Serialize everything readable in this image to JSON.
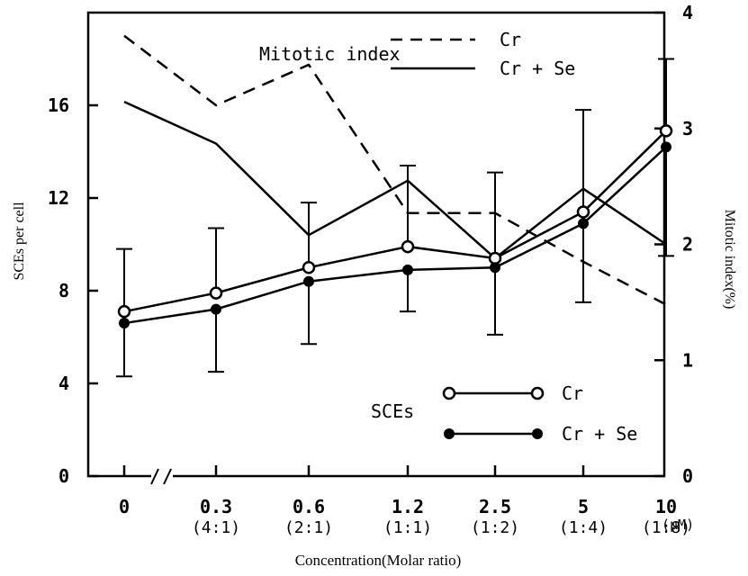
{
  "chart_data": {
    "type": "line",
    "xlabel": "Concentration(Molar ratio)",
    "ylabel_left": "SCEs per cell",
    "ylabel_right": "Mitotic index(%)",
    "x_unit": "(μM)",
    "categories": [
      "0",
      "0.3",
      "0.6",
      "1.2",
      "2.5",
      "5",
      "10"
    ],
    "ratios": [
      "",
      "(4:1)",
      "(2:1)",
      "(1:1)",
      "(1:2)",
      "(1:4)",
      "(1:8)"
    ],
    "y_left_ticks": [
      "0",
      "4",
      "8",
      "12",
      "16"
    ],
    "y_left_lim": [
      0,
      20
    ],
    "y_right_ticks": [
      "0",
      "1",
      "2",
      "3",
      "4"
    ],
    "y_right_lim": [
      0,
      4
    ],
    "sce_series": [
      {
        "name": "Cr",
        "marker": "open",
        "values": [
          7.1,
          7.9,
          9.0,
          9.9,
          9.4,
          11.4,
          14.9
        ],
        "err_high": [
          9.8,
          10.7,
          11.8,
          13.4,
          13.1,
          15.8,
          18.0
        ],
        "err_low": [
          null,
          null,
          null,
          null,
          null,
          null,
          null
        ]
      },
      {
        "name": "Cr + Se",
        "marker": "filled",
        "values": [
          6.6,
          7.2,
          8.4,
          8.9,
          9.0,
          10.9,
          14.2
        ],
        "err_high": [
          null,
          null,
          null,
          null,
          null,
          null,
          null
        ],
        "err_low": [
          4.3,
          4.5,
          5.7,
          7.1,
          6.1,
          7.5,
          9.5
        ]
      }
    ],
    "mitotic_series": [
      {
        "name": "Cr",
        "style": "dashed",
        "values": [
          3.8,
          3.2,
          3.55,
          2.27,
          2.27,
          1.85,
          1.48
        ]
      },
      {
        "name": "Cr + Se",
        "style": "solid",
        "values": [
          3.23,
          2.87,
          2.08,
          2.55,
          1.88,
          2.48,
          2.0
        ]
      }
    ],
    "annotation_mitotic": "Mitotic index",
    "annotation_sces": "SCEs",
    "legend_mitotic": [
      "Cr",
      "Cr + Se"
    ],
    "legend_sces": [
      "Cr",
      "Cr + Se"
    ],
    "axis_break": true
  }
}
